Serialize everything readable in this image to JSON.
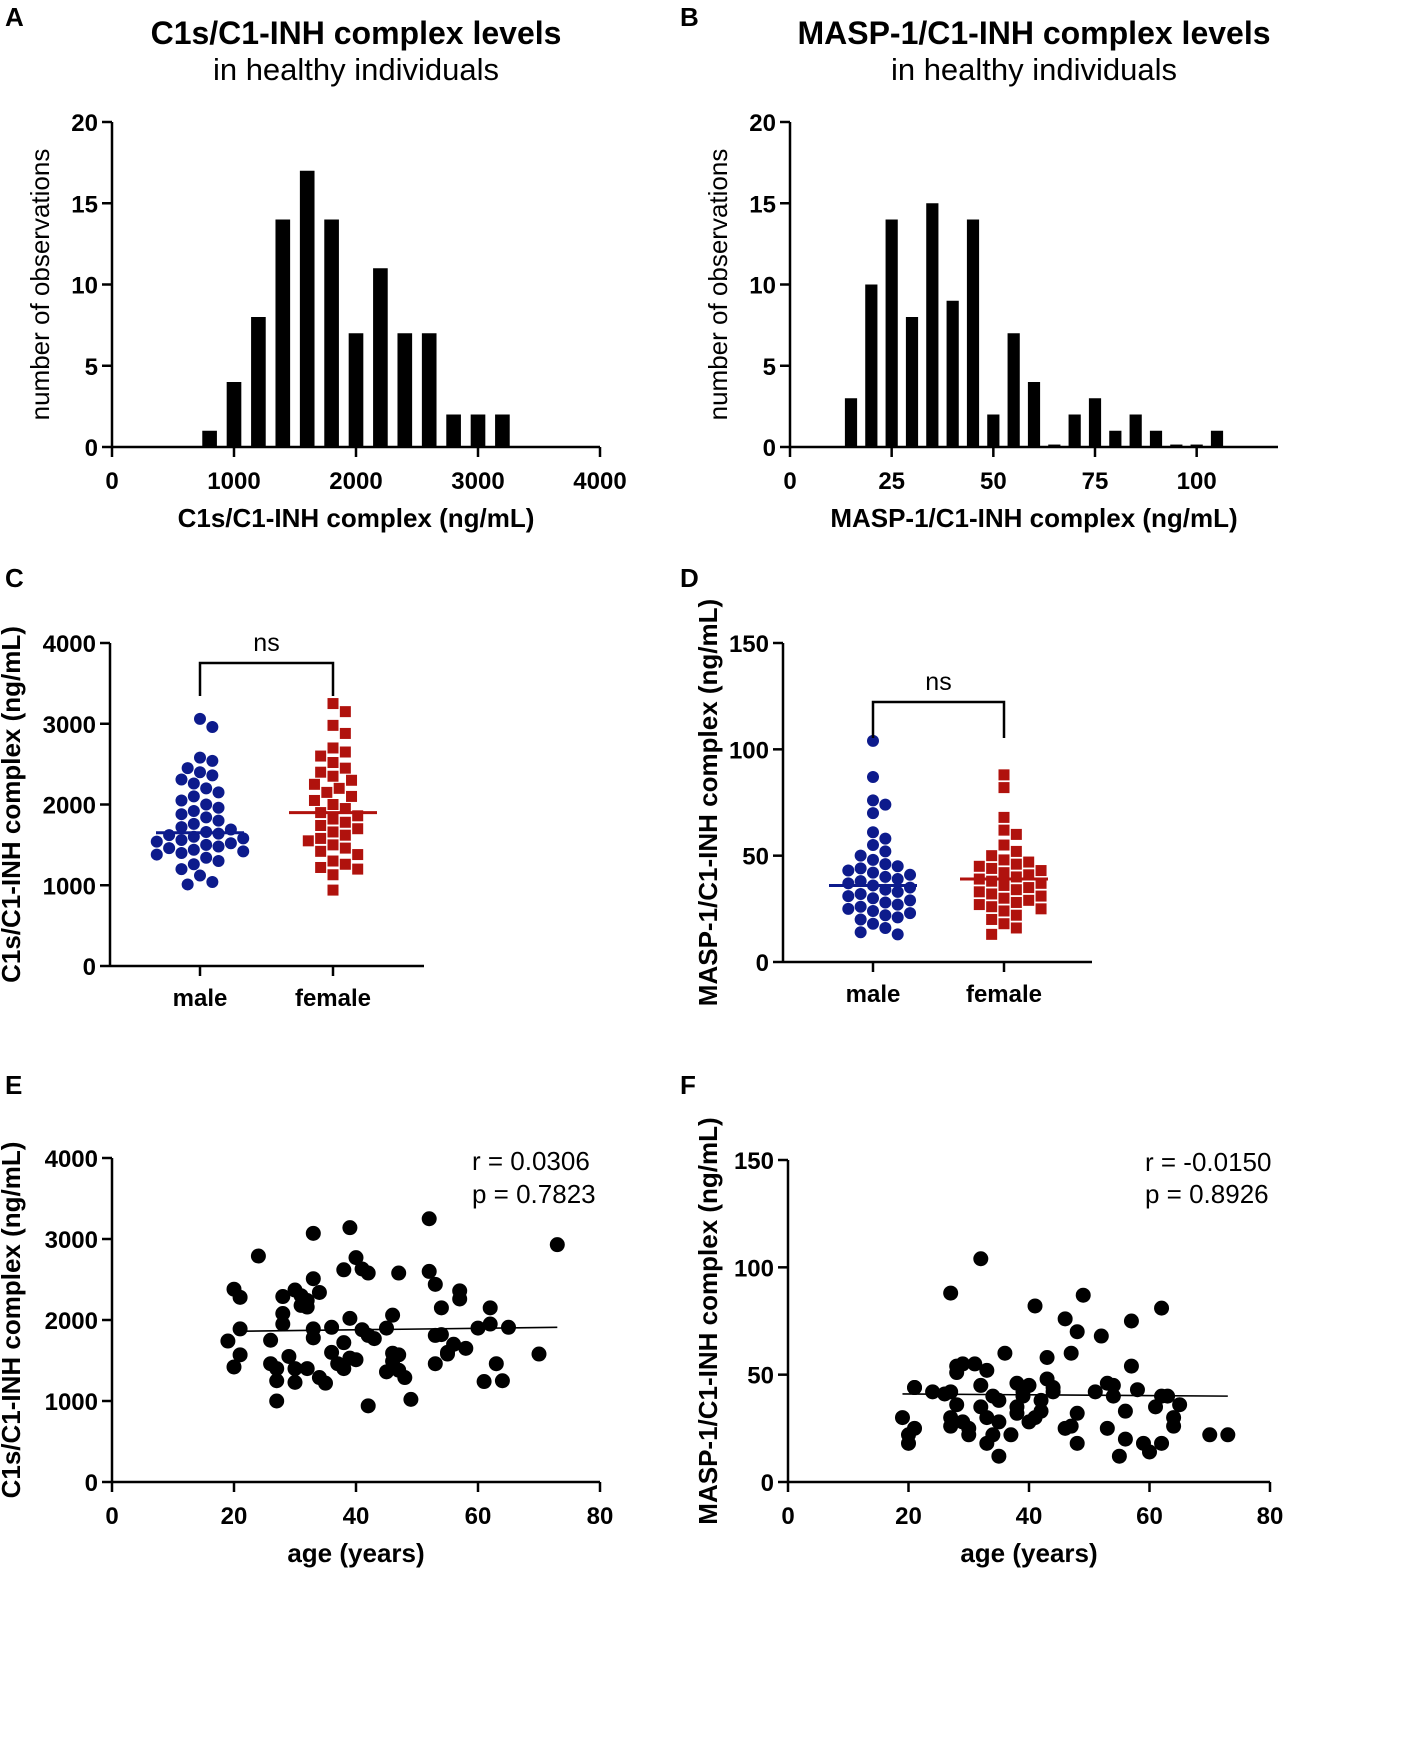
{
  "chart_data": [
    {
      "panel": "A",
      "type": "bar",
      "title": "C1s/C1-INH complex levels",
      "subtitle": "in healthy individuals",
      "xlabel": "C1s/C1-INH complex (ng/mL)",
      "ylabel": "number of observations",
      "xlim": [
        0,
        4000
      ],
      "ylim": [
        0,
        20
      ],
      "xticks": [
        "0",
        "1000",
        "2000",
        "3000",
        "4000"
      ],
      "yticks": [
        "0",
        "5",
        "10",
        "15",
        "20"
      ],
      "bin_centers": [
        800,
        1000,
        1200,
        1400,
        1600,
        1800,
        2000,
        2200,
        2400,
        2600,
        2800,
        3000,
        3200
      ],
      "values": [
        1,
        4,
        8,
        14,
        17,
        14,
        7,
        11,
        7,
        7,
        2,
        2,
        2
      ]
    },
    {
      "panel": "B",
      "type": "bar",
      "title": "MASP-1/C1-INH complex levels",
      "subtitle": "in healthy individuals",
      "xlabel": "MASP-1/C1-INH complex (ng/mL)",
      "ylabel": "number of observations",
      "xlim": [
        0,
        120
      ],
      "ylim": [
        0,
        20
      ],
      "xticks": [
        "0",
        "25",
        "50",
        "75",
        "100"
      ],
      "yticks": [
        "0",
        "5",
        "10",
        "15",
        "20"
      ],
      "bin_centers": [
        15,
        20,
        25,
        30,
        35,
        40,
        45,
        50,
        55,
        60,
        65,
        70,
        75,
        80,
        85,
        90,
        95,
        100,
        105
      ],
      "values": [
        3,
        10,
        14,
        8,
        15,
        9,
        14,
        2,
        7,
        4,
        0.15,
        2,
        3,
        1,
        2,
        1,
        0.15,
        0.15,
        1
      ]
    },
    {
      "panel": "C",
      "type": "scatter",
      "ylabel": "C1s/C1-INH complex (ng/mL)",
      "categories": [
        "male",
        "female"
      ],
      "ylim": [
        0,
        4000
      ],
      "yticks": [
        "0",
        "1000",
        "2000",
        "3000",
        "4000"
      ],
      "significance": "ns",
      "series": [
        {
          "name": "male",
          "marker": "circle",
          "color": "#0d1b8c",
          "mean": 1650,
          "values": [
            3060,
            2960,
            2580,
            2540,
            2450,
            2400,
            2360,
            2310,
            2260,
            2200,
            2150,
            2100,
            2050,
            2000,
            1960,
            1920,
            1880,
            1840,
            1800,
            1760,
            1720,
            1690,
            1660,
            1640,
            1620,
            1600,
            1580,
            1560,
            1540,
            1520,
            1500,
            1480,
            1460,
            1440,
            1420,
            1400,
            1380,
            1340,
            1300,
            1260,
            1200,
            1120,
            1040,
            1010
          ]
        },
        {
          "name": "female",
          "marker": "square",
          "color": "#b0120d",
          "mean": 1900,
          "values": [
            3250,
            3150,
            2980,
            2880,
            2700,
            2650,
            2600,
            2520,
            2450,
            2400,
            2350,
            2300,
            2250,
            2200,
            2150,
            2100,
            2050,
            2000,
            1950,
            1900,
            1860,
            1820,
            1780,
            1740,
            1700,
            1660,
            1620,
            1580,
            1550,
            1500,
            1460,
            1420,
            1380,
            1300,
            1260,
            1220,
            1200,
            1130,
            940
          ]
        }
      ]
    },
    {
      "panel": "D",
      "type": "scatter",
      "ylabel": "MASP-1/C1-INH complex (ng/mL)",
      "categories": [
        "male",
        "female"
      ],
      "ylim": [
        0,
        150
      ],
      "yticks": [
        "0",
        "50",
        "100",
        "150"
      ],
      "significance": "ns",
      "series": [
        {
          "name": "male",
          "marker": "circle",
          "color": "#0d1b8c",
          "mean": 36,
          "values": [
            104,
            87,
            76,
            74,
            70,
            61,
            58,
            55,
            52,
            50,
            48,
            46,
            45,
            44,
            43,
            42,
            41,
            40,
            39,
            38,
            37,
            36,
            35,
            34,
            33,
            32,
            31,
            30,
            29,
            28,
            27,
            26,
            25,
            24,
            23,
            22,
            21,
            20,
            18,
            16,
            14,
            13
          ]
        },
        {
          "name": "female",
          "marker": "square",
          "color": "#b0120d",
          "mean": 39,
          "values": [
            88,
            82,
            68,
            62,
            60,
            55,
            52,
            50,
            48,
            47,
            46,
            45,
            44,
            43,
            42,
            41,
            40,
            39,
            38,
            37,
            36,
            35,
            34,
            33,
            32,
            31,
            30,
            29,
            28,
            27,
            26,
            25,
            24,
            22,
            20,
            18,
            16,
            13
          ]
        }
      ]
    },
    {
      "panel": "E",
      "type": "scatter",
      "xlabel": "age (years)",
      "ylabel": "C1s/C1-INH complex (ng/mL)",
      "xlim": [
        0,
        80
      ],
      "ylim": [
        0,
        4000
      ],
      "xticks": [
        "0",
        "20",
        "40",
        "60",
        "80"
      ],
      "yticks": [
        "0",
        "1000",
        "2000",
        "3000",
        "4000"
      ],
      "r_text": "r = 0.0306",
      "p_text": "p = 0.7823",
      "fit": {
        "x": [
          20,
          73
        ],
        "y": [
          1860,
          1910
        ]
      },
      "points": [
        [
          19,
          1740
        ],
        [
          20,
          2380
        ],
        [
          20,
          1420
        ],
        [
          21,
          2280
        ],
        [
          21,
          1890
        ],
        [
          21,
          1570
        ],
        [
          24,
          2790
        ],
        [
          26,
          1750
        ],
        [
          26,
          1460
        ],
        [
          27,
          1250
        ],
        [
          27,
          1000
        ],
        [
          27,
          1400
        ],
        [
          28,
          1950
        ],
        [
          28,
          2080
        ],
        [
          28,
          2290
        ],
        [
          29,
          1550
        ],
        [
          30,
          2370
        ],
        [
          30,
          1400
        ],
        [
          30,
          1230
        ],
        [
          31,
          2300
        ],
        [
          31,
          2180
        ],
        [
          32,
          2240
        ],
        [
          32,
          2160
        ],
        [
          32,
          1400
        ],
        [
          33,
          1780
        ],
        [
          33,
          1890
        ],
        [
          33,
          2510
        ],
        [
          33,
          3070
        ],
        [
          34,
          2340
        ],
        [
          34,
          1290
        ],
        [
          35,
          1220
        ],
        [
          36,
          1910
        ],
        [
          36,
          1600
        ],
        [
          37,
          1460
        ],
        [
          38,
          1720
        ],
        [
          38,
          2620
        ],
        [
          38,
          1400
        ],
        [
          39,
          2020
        ],
        [
          39,
          1530
        ],
        [
          39,
          3140
        ],
        [
          40,
          2770
        ],
        [
          40,
          1510
        ],
        [
          41,
          2630
        ],
        [
          41,
          1880
        ],
        [
          42,
          2580
        ],
        [
          42,
          1810
        ],
        [
          42,
          940
        ],
        [
          43,
          1770
        ],
        [
          45,
          1900
        ],
        [
          45,
          1360
        ],
        [
          46,
          1590
        ],
        [
          46,
          1490
        ],
        [
          46,
          2060
        ],
        [
          47,
          2580
        ],
        [
          47,
          1380
        ],
        [
          47,
          1570
        ],
        [
          48,
          1290
        ],
        [
          49,
          1020
        ],
        [
          52,
          2600
        ],
        [
          52,
          3250
        ],
        [
          53,
          1810
        ],
        [
          53,
          2440
        ],
        [
          53,
          1460
        ],
        [
          54,
          2150
        ],
        [
          54,
          1820
        ],
        [
          55,
          1600
        ],
        [
          55,
          1580
        ],
        [
          56,
          1700
        ],
        [
          57,
          2260
        ],
        [
          57,
          2360
        ],
        [
          58,
          1650
        ],
        [
          60,
          1900
        ],
        [
          61,
          1240
        ],
        [
          62,
          2150
        ],
        [
          62,
          1950
        ],
        [
          63,
          1460
        ],
        [
          64,
          1250
        ],
        [
          65,
          1910
        ],
        [
          70,
          1580
        ],
        [
          73,
          2930
        ]
      ]
    },
    {
      "panel": "F",
      "type": "scatter",
      "xlabel": "age (years)",
      "ylabel": "MASP-1/C1-INH complex (ng/mL)",
      "xlim": [
        0,
        80
      ],
      "ylim": [
        0,
        150
      ],
      "xticks": [
        "0",
        "20",
        "40",
        "60",
        "80"
      ],
      "yticks": [
        "0",
        "50",
        "100",
        "150"
      ],
      "r_text": "r = -0.0150",
      "p_text": "p = 0.8926",
      "fit": {
        "x": [
          19,
          73
        ],
        "y": [
          41,
          40
        ]
      },
      "points": [
        [
          19,
          30
        ],
        [
          20,
          18
        ],
        [
          20,
          22
        ],
        [
          21,
          44
        ],
        [
          21,
          25
        ],
        [
          21,
          44
        ],
        [
          24,
          42
        ],
        [
          26,
          41
        ],
        [
          27,
          88
        ],
        [
          27,
          30
        ],
        [
          27,
          26
        ],
        [
          27,
          42
        ],
        [
          28,
          51
        ],
        [
          28,
          54
        ],
        [
          28,
          36
        ],
        [
          29,
          55
        ],
        [
          29,
          28
        ],
        [
          30,
          25
        ],
        [
          30,
          22
        ],
        [
          31,
          55
        ],
        [
          32,
          104
        ],
        [
          32,
          45
        ],
        [
          32,
          35
        ],
        [
          33,
          30
        ],
        [
          33,
          52
        ],
        [
          33,
          18
        ],
        [
          34,
          22
        ],
        [
          34,
          40
        ],
        [
          35,
          12
        ],
        [
          35,
          38
        ],
        [
          35,
          28
        ],
        [
          36,
          60
        ],
        [
          37,
          22
        ],
        [
          38,
          46
        ],
        [
          38,
          35
        ],
        [
          38,
          32
        ],
        [
          39,
          40
        ],
        [
          39,
          42
        ],
        [
          40,
          28
        ],
        [
          40,
          45
        ],
        [
          41,
          82
        ],
        [
          41,
          30
        ],
        [
          42,
          33
        ],
        [
          42,
          38
        ],
        [
          43,
          58
        ],
        [
          43,
          48
        ],
        [
          44,
          42
        ],
        [
          44,
          44
        ],
        [
          46,
          25
        ],
        [
          46,
          76
        ],
        [
          47,
          26
        ],
        [
          47,
          60
        ],
        [
          48,
          70
        ],
        [
          48,
          32
        ],
        [
          48,
          18
        ],
        [
          49,
          87
        ],
        [
          51,
          42
        ],
        [
          52,
          68
        ],
        [
          53,
          46
        ],
        [
          53,
          25
        ],
        [
          54,
          45
        ],
        [
          54,
          40
        ],
        [
          55,
          12
        ],
        [
          56,
          33
        ],
        [
          56,
          20
        ],
        [
          57,
          54
        ],
        [
          57,
          75
        ],
        [
          58,
          43
        ],
        [
          59,
          18
        ],
        [
          60,
          14
        ],
        [
          61,
          35
        ],
        [
          62,
          18
        ],
        [
          62,
          81
        ],
        [
          62,
          40
        ],
        [
          63,
          40
        ],
        [
          64,
          26
        ],
        [
          64,
          30
        ],
        [
          65,
          36
        ],
        [
          70,
          22
        ],
        [
          73,
          22
        ]
      ]
    }
  ]
}
